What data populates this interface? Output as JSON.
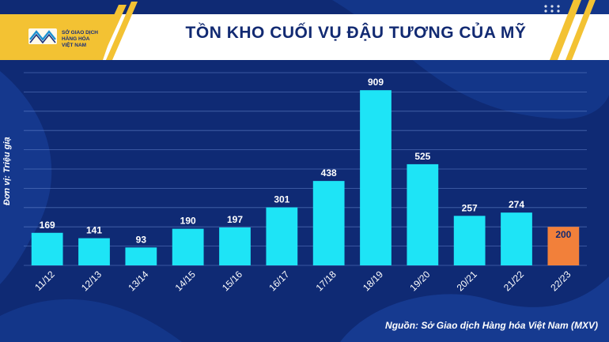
{
  "logo": {
    "line1": "SỞ GIAO DỊCH",
    "line2": "HÀNG HÓA",
    "line3": "VIỆT NAM"
  },
  "source": "Nguồn: Sở Giao dịch Hàng hóa Việt Nam (MXV)",
  "colors": {
    "background": "#0f2a74",
    "bar": "#1ee4f6",
    "highlight_bar": "#f2803a",
    "gold": "#f3c233",
    "title": "#122a72"
  },
  "chart_data": {
    "type": "bar",
    "title": "TỒN KHO CUỐI VỤ ĐẬU TƯƠNG CỦA MỸ",
    "ylabel": "Đơn vị: Triệu giạ",
    "xlabel": "",
    "categories": [
      "11/12",
      "12/13",
      "13/14",
      "14/15",
      "15/16",
      "16/17",
      "17/18",
      "18/19",
      "19/20",
      "20/21",
      "21/22",
      "22/23"
    ],
    "values": [
      169,
      141,
      93,
      190,
      197,
      301,
      438,
      909,
      525,
      257,
      274,
      200
    ],
    "highlight": [
      "22/23"
    ],
    "ylim": [
      0,
      1000
    ],
    "grid": true,
    "legend": "none"
  }
}
